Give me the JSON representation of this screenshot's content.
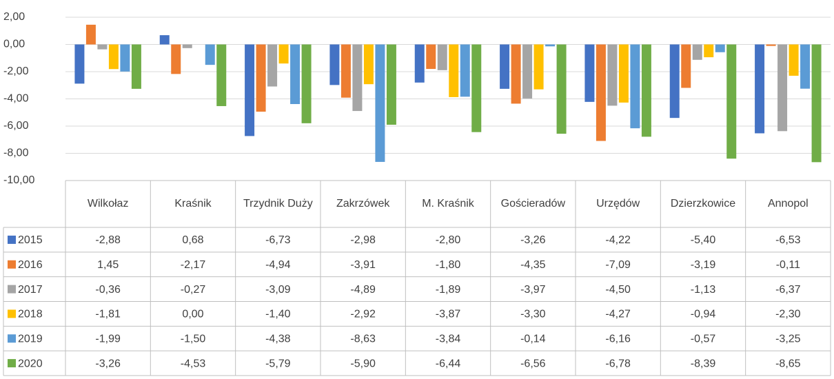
{
  "chart_data": {
    "type": "bar",
    "categories": [
      "Wilkołaz",
      "Kraśnik",
      "Trzydnik Duży",
      "Zakrzówek",
      "M. Kraśnik",
      "Gościeradów",
      "Urzędów",
      "Dzierzkowice",
      "Annopol"
    ],
    "series": [
      {
        "name": "2015",
        "color": "#4472c4",
        "values": [
          -2.88,
          0.68,
          -6.73,
          -2.98,
          -2.8,
          -3.26,
          -4.22,
          -5.4,
          -6.53
        ],
        "value_labels": [
          "-2,88",
          "0,68",
          "-6,73",
          "-2,98",
          "-2,80",
          "-3,26",
          "-4,22",
          "-5,40",
          "-6,53"
        ]
      },
      {
        "name": "2016",
        "color": "#ed7d31",
        "values": [
          1.45,
          -2.17,
          -4.94,
          -3.91,
          -1.8,
          -4.35,
          -7.09,
          -3.19,
          -0.11
        ],
        "value_labels": [
          "1,45",
          "-2,17",
          "-4,94",
          "-3,91",
          "-1,80",
          "-4,35",
          "-7,09",
          "-3,19",
          "-0,11"
        ]
      },
      {
        "name": "2017",
        "color": "#a5a5a5",
        "values": [
          -0.36,
          -0.27,
          -3.09,
          -4.89,
          -1.89,
          -3.97,
          -4.5,
          -1.13,
          -6.37
        ],
        "value_labels": [
          "-0,36",
          "-0,27",
          "-3,09",
          "-4,89",
          "-1,89",
          "-3,97",
          "-4,50",
          "-1,13",
          "-6,37"
        ]
      },
      {
        "name": "2018",
        "color": "#ffc000",
        "values": [
          -1.81,
          0.0,
          -1.4,
          -2.92,
          -3.87,
          -3.3,
          -4.27,
          -0.94,
          -2.3
        ],
        "value_labels": [
          "-1,81",
          "0,00",
          "-1,40",
          "-2,92",
          "-3,87",
          "-3,30",
          "-4,27",
          "-0,94",
          "-2,30"
        ]
      },
      {
        "name": "2019",
        "color": "#5b9bd5",
        "values": [
          -1.99,
          -1.5,
          -4.38,
          -8.63,
          -3.84,
          -0.14,
          -6.16,
          -0.57,
          -3.25
        ],
        "value_labels": [
          "-1,99",
          "-1,50",
          "-4,38",
          "-8,63",
          "-3,84",
          "-0,14",
          "-6,16",
          "-0,57",
          "-3,25"
        ]
      },
      {
        "name": "2020",
        "color": "#70ad47",
        "values": [
          -3.26,
          -4.53,
          -5.79,
          -5.9,
          -6.44,
          -6.56,
          -6.78,
          -8.39,
          -8.65
        ],
        "value_labels": [
          "-3,26",
          "-4,53",
          "-5,79",
          "-5,90",
          "-6,44",
          "-6,56",
          "-6,78",
          "-8,39",
          "-8,65"
        ]
      }
    ],
    "ylim": [
      -10,
      2
    ],
    "yticks": [
      {
        "value": -10,
        "label": "-10,00"
      },
      {
        "value": -8,
        "label": "-8,00"
      },
      {
        "value": -6,
        "label": "-6,00"
      },
      {
        "value": -4,
        "label": "-4,00"
      },
      {
        "value": -2,
        "label": "-2,00"
      },
      {
        "value": 0,
        "label": "0,00"
      },
      {
        "value": 2,
        "label": "2,00"
      }
    ],
    "grid": true
  }
}
